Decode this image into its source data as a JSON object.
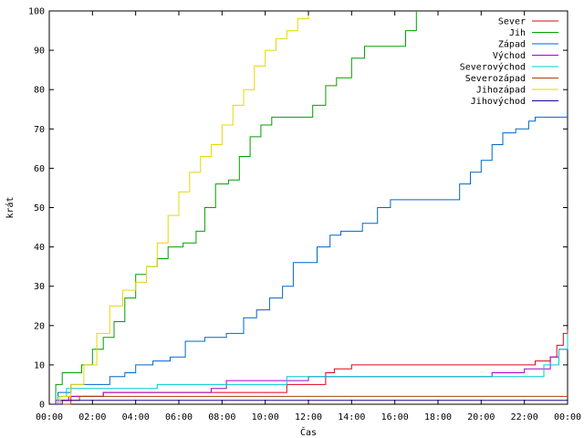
{
  "chart_data": {
    "type": "line",
    "xlabel": "Čas",
    "ylabel": "krát",
    "xlim": [
      0,
      24
    ],
    "ylim": [
      0,
      100
    ],
    "x_ticks": [
      "00:00",
      "02:00",
      "04:00",
      "06:00",
      "08:00",
      "10:00",
      "12:00",
      "14:00",
      "16:00",
      "18:00",
      "20:00",
      "22:00",
      "00:00"
    ],
    "y_ticks": [
      "0",
      "10",
      "20",
      "30",
      "40",
      "50",
      "60",
      "70",
      "80",
      "90",
      "100"
    ],
    "grid": false,
    "legend_position": "top-right",
    "series": [
      {
        "name": "Sever",
        "color": "#e0001a",
        "points": [
          [
            0,
            0
          ],
          [
            0.5,
            1
          ],
          [
            0.9,
            2
          ],
          [
            2.5,
            3
          ],
          [
            7.5,
            3
          ],
          [
            10.5,
            3
          ],
          [
            11,
            5
          ],
          [
            12,
            5
          ],
          [
            12.8,
            8
          ],
          [
            13.2,
            9
          ],
          [
            14,
            10
          ],
          [
            18,
            10
          ],
          [
            21,
            10
          ],
          [
            22.5,
            11
          ],
          [
            23.2,
            12
          ],
          [
            23.5,
            15
          ],
          [
            23.8,
            18
          ],
          [
            24,
            19
          ]
        ]
      },
      {
        "name": "Jih",
        "color": "#00a000",
        "points": [
          [
            0,
            0
          ],
          [
            0.3,
            5
          ],
          [
            0.6,
            8
          ],
          [
            1.5,
            10
          ],
          [
            2.0,
            14
          ],
          [
            2.5,
            17
          ],
          [
            3.0,
            21
          ],
          [
            3.5,
            27
          ],
          [
            4.0,
            33
          ],
          [
            4.5,
            35
          ],
          [
            5.0,
            37
          ],
          [
            5.5,
            40
          ],
          [
            6.2,
            41
          ],
          [
            6.8,
            44
          ],
          [
            7.2,
            50
          ],
          [
            7.7,
            56
          ],
          [
            8.3,
            57
          ],
          [
            8.8,
            63
          ],
          [
            9.3,
            68
          ],
          [
            9.8,
            71
          ],
          [
            10.3,
            73
          ],
          [
            11.8,
            73
          ],
          [
            12.2,
            76
          ],
          [
            12.8,
            81
          ],
          [
            13.3,
            83
          ],
          [
            14.0,
            88
          ],
          [
            14.6,
            91
          ],
          [
            16.0,
            91
          ],
          [
            16.5,
            95
          ],
          [
            17.0,
            100
          ]
        ]
      },
      {
        "name": "Západ",
        "color": "#0066cc",
        "points": [
          [
            0,
            0
          ],
          [
            0.4,
            3
          ],
          [
            1.0,
            5
          ],
          [
            2.2,
            5
          ],
          [
            2.8,
            7
          ],
          [
            3.5,
            8
          ],
          [
            4.0,
            10
          ],
          [
            4.8,
            11
          ],
          [
            5.6,
            12
          ],
          [
            6.3,
            16
          ],
          [
            7.2,
            17
          ],
          [
            8.2,
            18
          ],
          [
            9.0,
            22
          ],
          [
            9.6,
            24
          ],
          [
            10.2,
            27
          ],
          [
            10.8,
            30
          ],
          [
            11.3,
            36
          ],
          [
            12.4,
            40
          ],
          [
            13.0,
            43
          ],
          [
            13.5,
            44
          ],
          [
            14.5,
            46
          ],
          [
            15.2,
            50
          ],
          [
            15.8,
            52
          ],
          [
            18.5,
            52
          ],
          [
            19.0,
            56
          ],
          [
            19.5,
            59
          ],
          [
            20.0,
            62
          ],
          [
            20.5,
            66
          ],
          [
            21.0,
            69
          ],
          [
            21.6,
            70
          ],
          [
            22.2,
            72
          ],
          [
            22.5,
            73
          ],
          [
            24,
            73
          ]
        ]
      },
      {
        "name": "Východ",
        "color": "#aa00cc",
        "points": [
          [
            0,
            0
          ],
          [
            0.3,
            1
          ],
          [
            1.0,
            2
          ],
          [
            2.5,
            3
          ],
          [
            5.0,
            3
          ],
          [
            7.5,
            4
          ],
          [
            8.2,
            6
          ],
          [
            11.8,
            6
          ],
          [
            12.0,
            7
          ],
          [
            18.5,
            7
          ],
          [
            20.5,
            8
          ],
          [
            22.0,
            9
          ],
          [
            23.2,
            12
          ],
          [
            23.6,
            14
          ],
          [
            24,
            14
          ]
        ]
      },
      {
        "name": "Severovýchod",
        "color": "#00cccc",
        "points": [
          [
            0,
            0
          ],
          [
            0.4,
            2
          ],
          [
            0.8,
            4
          ],
          [
            3.5,
            4
          ],
          [
            5.0,
            5
          ],
          [
            10.8,
            5
          ],
          [
            11.0,
            7
          ],
          [
            22.5,
            7
          ],
          [
            22.9,
            10
          ],
          [
            23.6,
            14
          ],
          [
            24,
            18
          ]
        ]
      },
      {
        "name": "Severozápad",
        "color": "#aa4400",
        "points": [
          [
            0,
            0
          ],
          [
            0.8,
            0
          ],
          [
            1.0,
            1
          ],
          [
            1.4,
            2
          ],
          [
            24,
            2
          ]
        ]
      },
      {
        "name": "Jihozápad",
        "color": "#e6d800",
        "points": [
          [
            0,
            0
          ],
          [
            0.5,
            2
          ],
          [
            1.0,
            5
          ],
          [
            1.6,
            10
          ],
          [
            2.2,
            18
          ],
          [
            2.8,
            25
          ],
          [
            3.4,
            29
          ],
          [
            4.0,
            31
          ],
          [
            4.5,
            35
          ],
          [
            5.0,
            41
          ],
          [
            5.5,
            48
          ],
          [
            6.0,
            54
          ],
          [
            6.5,
            59
          ],
          [
            7.0,
            63
          ],
          [
            7.5,
            66
          ],
          [
            8.0,
            71
          ],
          [
            8.5,
            76
          ],
          [
            9.0,
            80
          ],
          [
            9.5,
            86
          ],
          [
            10.0,
            90
          ],
          [
            10.5,
            93
          ],
          [
            11.0,
            95
          ],
          [
            11.5,
            98
          ],
          [
            12.0,
            100
          ]
        ]
      },
      {
        "name": "Jihovýchod",
        "color": "#220099",
        "points": [
          [
            0,
            0
          ],
          [
            0.6,
            1
          ],
          [
            0.8,
            1
          ],
          [
            24,
            1
          ]
        ]
      }
    ]
  }
}
